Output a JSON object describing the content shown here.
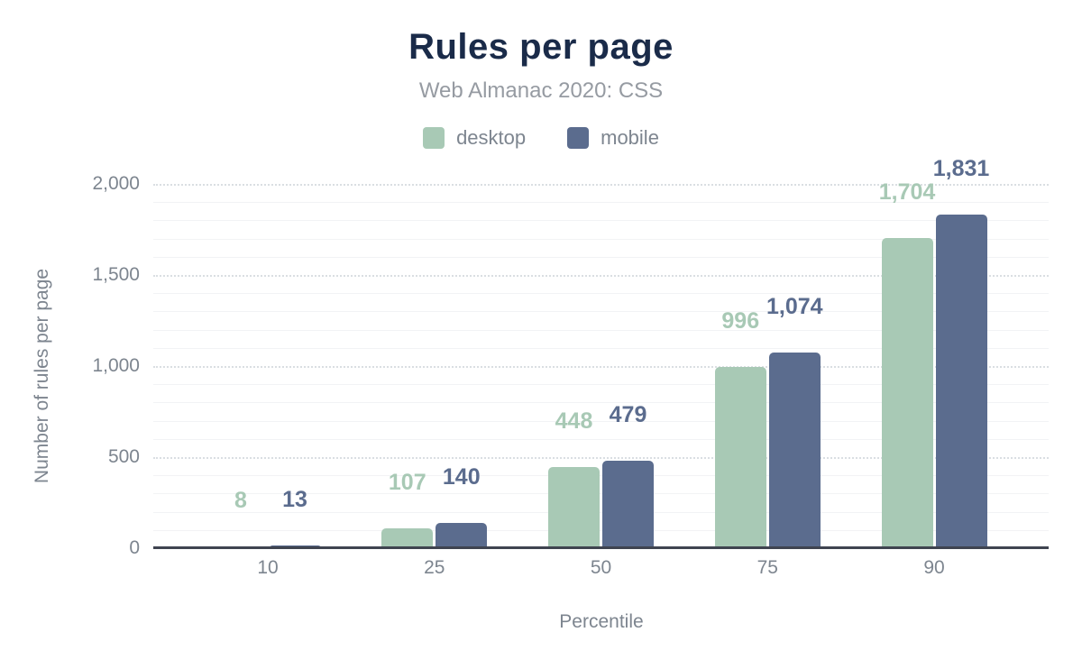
{
  "chart": {
    "title": "Rules per page",
    "subtitle": "Web Almanac 2020: CSS"
  },
  "legend": {
    "items": [
      {
        "label": "desktop",
        "color": "#a8c9b5"
      },
      {
        "label": "mobile",
        "color": "#5b6c8e"
      }
    ]
  },
  "colors": {
    "title": "#1a2b49",
    "subtitle": "#969ba2",
    "axis_text": "#7d858f",
    "axis_line": "#3f4450",
    "grid_major": "#dadee2",
    "grid_minor": "#f2f3f5",
    "background": "#ffffff"
  },
  "chart_data": {
    "type": "bar",
    "title": "Rules per page",
    "subtitle": "Web Almanac 2020: CSS",
    "categories": [
      "10",
      "25",
      "50",
      "75",
      "90"
    ],
    "series": [
      {
        "name": "desktop",
        "color": "#a8c9b5",
        "values": [
          8,
          107,
          448,
          996,
          1704
        ],
        "labels": [
          "8",
          "107",
          "448",
          "996",
          "1,704"
        ]
      },
      {
        "name": "mobile",
        "color": "#5b6c8e",
        "values": [
          13,
          140,
          479,
          1074,
          1831
        ],
        "labels": [
          "13",
          "140",
          "479",
          "1,074",
          "1,831"
        ]
      }
    ],
    "xlabel": "Percentile",
    "ylabel": "Number of rules per page",
    "ylim": [
      0,
      2000
    ],
    "ytick_step": 500,
    "minor_step": 100,
    "yticks": [
      "0",
      "500",
      "1,000",
      "1,500",
      "2,000"
    ],
    "grid": true,
    "legend_position": "top"
  }
}
